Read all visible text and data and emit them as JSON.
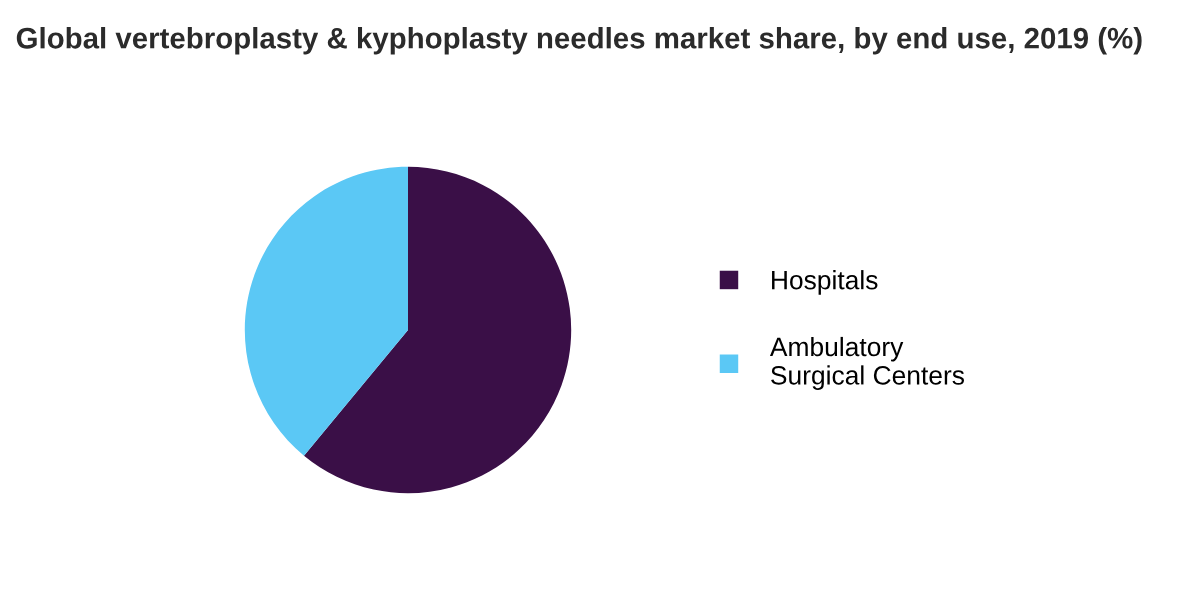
{
  "chart_data": {
    "type": "pie",
    "title": "Global vertebroplasty & kyphoplasty needles market share, by end use, 2019 (%)",
    "categories": [
      "Hospitals",
      "Ambulatory\nSurgical Centers"
    ],
    "values": [
      61,
      39
    ],
    "colors": [
      "#3a0f47",
      "#5bc8f5"
    ],
    "legend": "right"
  }
}
